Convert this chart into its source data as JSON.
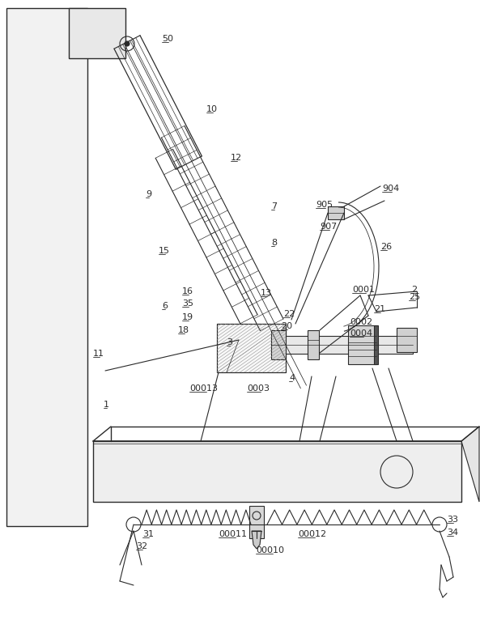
{
  "fig_width": 5.93,
  "fig_height": 7.66,
  "dpi": 100,
  "bg": "#ffffff",
  "lc": "#2a2a2a",
  "lw": 0.8
}
